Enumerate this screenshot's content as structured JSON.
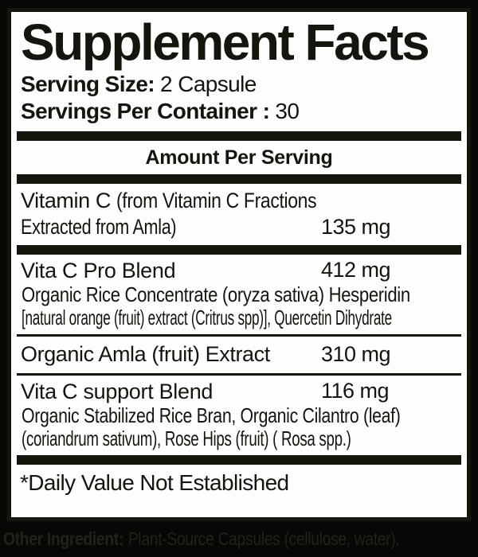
{
  "label": {
    "title": "Supplement Facts",
    "serving_size": {
      "label": "Serving Size:",
      "value": "2 Capsule"
    },
    "servings_per_container": {
      "label": "Servings Per Container :",
      "value": "30"
    },
    "amount_header": "Amount Per Serving",
    "rows": [
      {
        "name": "Vitamin C",
        "detail_line1": "(from Vitamin C Fractions",
        "detail_line2": "Extracted from Amla)",
        "amount": "135 mg"
      },
      {
        "name": "Vita C Pro Blend",
        "amount": "412 mg",
        "description_line1": "Organic Rice Concentrate (oryza sativa) Hesperidin",
        "description_line2": "[natural orange (fruit) extract (Critrus spp)], Quercetin Dihydrate"
      },
      {
        "name": "Organic Amla (fruit) Extract",
        "amount": "310 mg"
      },
      {
        "name": "Vita C support Blend",
        "amount": "116 mg",
        "description_line1": "Organic Stabilized Rice Bran, Organic Cilantro (leaf)",
        "description_line2": "(coriandrum sativum), Rose Hips (fruit) ( Rosa spp.)"
      }
    ],
    "footnote": "*Daily Value Not Established"
  },
  "footer": {
    "other_ingredient_label": "Other Ingredient:",
    "other_ingredient_value": "Plant-Source Capsules (cellulose, water)."
  },
  "colors": {
    "ink": "#15150e",
    "panel_bg": "#fdfdfd",
    "outer_bg": "#070705",
    "footer_ink": "#22221a"
  }
}
